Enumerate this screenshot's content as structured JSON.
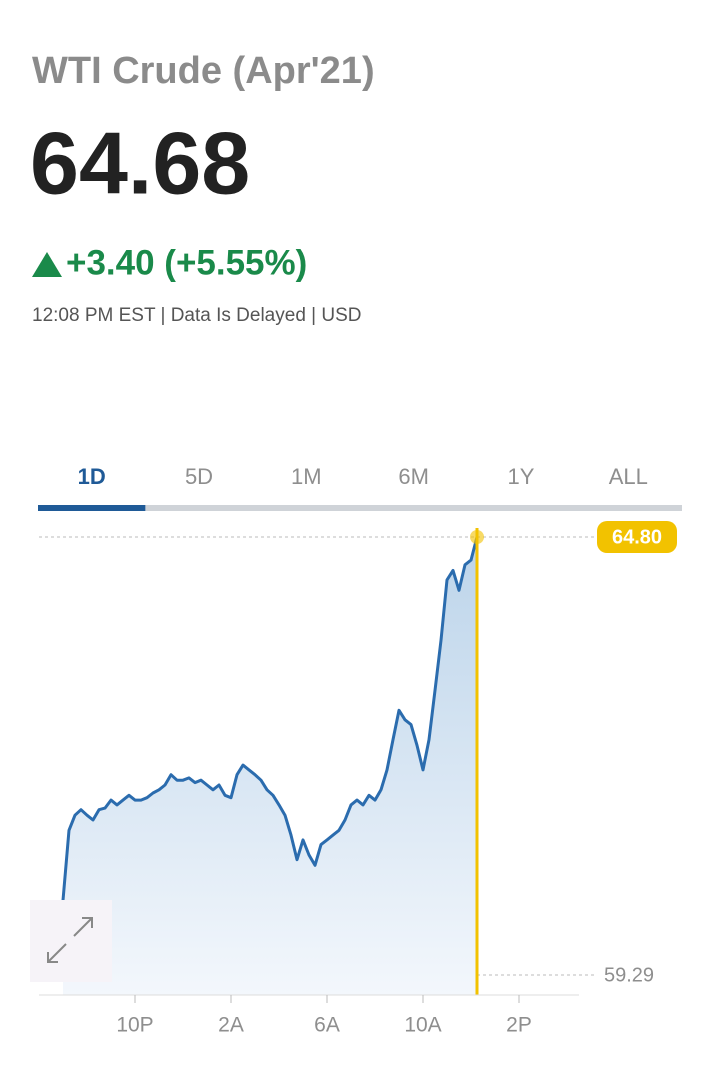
{
  "header": {
    "title": "WTI Crude (Apr'21)",
    "price": "64.68",
    "change": "+3.40 (+5.55%)",
    "info": "12:08 PM EST | Data Is Delayed | USD"
  },
  "tabs": {
    "items": [
      "1D",
      "5D",
      "1M",
      "6M",
      "1Y",
      "ALL"
    ],
    "active": "1D"
  },
  "chart_data": {
    "type": "line",
    "series": [
      {
        "name": "WTI Crude",
        "color": "#2b6cae",
        "values": [
          60.23,
          61.11,
          61.3,
          61.37,
          61.3,
          61.24,
          61.37,
          61.39,
          61.49,
          61.43,
          61.49,
          61.55,
          61.49,
          61.49,
          61.52,
          61.58,
          61.62,
          61.68,
          61.81,
          61.74,
          61.74,
          61.77,
          61.71,
          61.74,
          61.68,
          61.62,
          61.68,
          61.55,
          61.52,
          61.81,
          61.93,
          61.87,
          61.81,
          61.74,
          61.62,
          61.55,
          61.43,
          61.3,
          61.05,
          60.74,
          60.99,
          60.8,
          60.67,
          60.93,
          60.99,
          61.05,
          61.11,
          61.24,
          61.43,
          61.49,
          61.43,
          61.55,
          61.49,
          61.62,
          61.87,
          62.25,
          62.62,
          62.5,
          62.44,
          62.18,
          61.87,
          62.25,
          62.87,
          63.5,
          64.26,
          64.38,
          64.13,
          64.45,
          64.51,
          64.8
        ]
      }
    ],
    "xlim": [
      -4,
      86
    ],
    "xticks": [
      {
        "value": 12,
        "label": "10P"
      },
      {
        "value": 28,
        "label": "2A"
      },
      {
        "value": 44,
        "label": "6A"
      },
      {
        "value": 60,
        "label": "10A"
      },
      {
        "value": 76,
        "label": "2P"
      }
    ],
    "ylim": [
      59.29,
      64.8
    ],
    "yticks": [
      59.29,
      {
        "value": 64.8,
        "label": "64.80"
      }
    ],
    "cursor_color": "#f2c200"
  }
}
